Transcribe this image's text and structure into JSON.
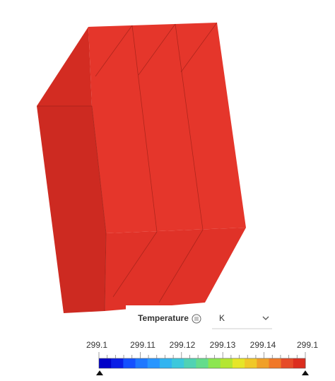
{
  "legend": {
    "title": "Temperature",
    "unit": "K",
    "labels": [
      "299.1",
      "299.11",
      "299.12",
      "299.13",
      "299.14",
      "299.1"
    ],
    "colors": [
      "#0000c8",
      "#0a1ee6",
      "#1450ff",
      "#1e78ff",
      "#2896ff",
      "#32b4f0",
      "#3cc8dc",
      "#50d2b4",
      "#64dc8c",
      "#8ce650",
      "#b4e632",
      "#e6e628",
      "#f0c828",
      "#f0a028",
      "#f07828",
      "#e64b28",
      "#dc2d1e"
    ]
  }
}
